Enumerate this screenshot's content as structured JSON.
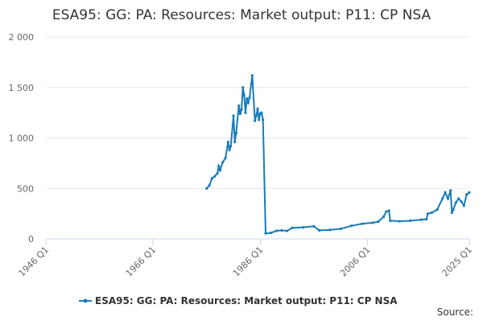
{
  "chart_data": {
    "type": "line",
    "title": "ESA95: GG: PA: Resources: Market output: P11: CP NSA",
    "source": "Source:",
    "xlim": [
      1946,
      2025
    ],
    "xticks": [
      {
        "value": 1946,
        "label": "1946 Q1"
      },
      {
        "value": 1966,
        "label": "1966 Q1"
      },
      {
        "value": 1986,
        "label": "1986 Q1"
      },
      {
        "value": 2006,
        "label": "2006 Q1"
      },
      {
        "value": 2025,
        "label": "2025 Q1"
      }
    ],
    "ylim": [
      0,
      2000
    ],
    "yticks": [
      0,
      500,
      {
        "value": 1000,
        "label": "1 000"
      },
      {
        "value": 1500,
        "label": "1 500"
      },
      {
        "value": 2000,
        "label": "2 000"
      }
    ],
    "grid": true,
    "legend": "bottom",
    "series": [
      {
        "name": "ESA95: GG: PA: Resources: Market output: P11: CP NSA",
        "color": "#1a7bb9",
        "x": [
          1976,
          1976.5,
          1977,
          1977.5,
          1978,
          1978.25,
          1978.5,
          1979,
          1979.5,
          1980,
          1980.25,
          1980.5,
          1981,
          1981.25,
          1981.5,
          1982,
          1982.25,
          1982.5,
          1982.75,
          1983,
          1983.25,
          1983.5,
          1983.75,
          1984,
          1984.5,
          1985,
          1985.25,
          1985.5,
          1985.75,
          1986,
          1986.25,
          1986.5,
          1987,
          1988,
          1989,
          1990,
          1991,
          1992,
          1994,
          1996,
          1997,
          1999,
          2001,
          2003,
          2005,
          2007,
          2008,
          2009,
          2009.5,
          2010,
          2010.25,
          2012,
          2014,
          2016,
          2017,
          2017.25,
          2018,
          2019,
          2020,
          2020.5,
          2021,
          2021.5,
          2021.75,
          2022,
          2022.5,
          2023,
          2023.5,
          2024,
          2024.5,
          2025
        ],
        "values": [
          500,
          530,
          600,
          620,
          650,
          720,
          680,
          760,
          800,
          960,
          880,
          920,
          1220,
          960,
          1050,
          1320,
          1240,
          1280,
          1500,
          1420,
          1250,
          1390,
          1350,
          1400,
          1620,
          1170,
          1220,
          1290,
          1180,
          1240,
          1250,
          1180,
          55,
          60,
          80,
          85,
          80,
          110,
          115,
          125,
          85,
          90,
          100,
          130,
          150,
          160,
          170,
          220,
          270,
          280,
          180,
          175,
          180,
          190,
          195,
          250,
          260,
          290,
          400,
          460,
          400,
          480,
          260,
          290,
          360,
          400,
          370,
          330,
          440,
          460
        ]
      }
    ]
  }
}
